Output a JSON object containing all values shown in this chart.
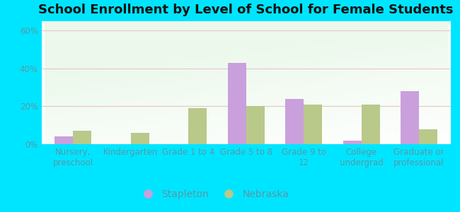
{
  "title": "School Enrollment by Level of School for Female Students",
  "categories": [
    "Nursery,\npreschool",
    "Kindergarten",
    "Grade 1 to 4",
    "Grade 5 to 8",
    "Grade 9 to\n12",
    "College\nundergrad",
    "Graduate or\nprofessional"
  ],
  "stapleton": [
    4,
    0,
    0,
    43,
    24,
    2,
    28
  ],
  "nebraska": [
    7,
    6,
    19,
    20,
    21,
    21,
    8
  ],
  "stapleton_color": "#c9a0dc",
  "nebraska_color": "#b8c98a",
  "background_color": "#00e5ff",
  "yticks": [
    0,
    20,
    40,
    60
  ],
  "ylim": [
    0,
    65
  ],
  "bar_width": 0.32,
  "figsize": [
    6.5,
    3.0
  ],
  "dpi": 100,
  "title_fontsize": 13,
  "tick_fontsize": 8.5,
  "legend_fontsize": 10,
  "grid_color": "#e8c0c0",
  "tick_color": "#5599aa"
}
